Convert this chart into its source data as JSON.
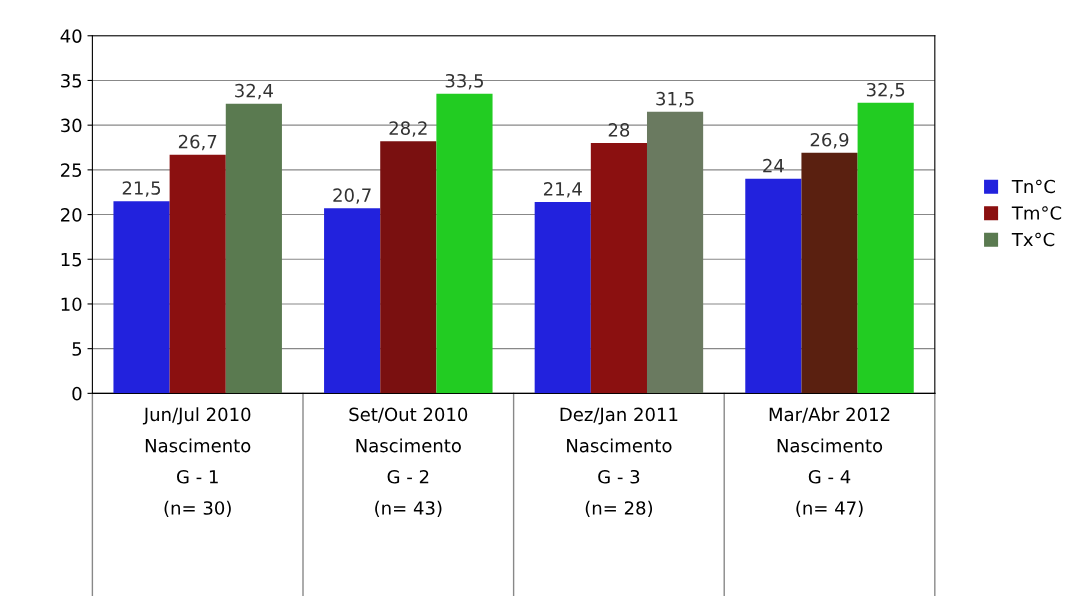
{
  "chart_data": {
    "type": "bar",
    "categories": [
      "Jun/Jul 2010\nNascimento\nG - 1\n(n= 30)",
      "Set/Out 2010\nNascimento\nG - 2\n(n= 43)",
      "Dez/Jan 2011\nNascimento\nG - 3\n(n= 28)",
      "Mar/Abr 2012\nNascimento\nG - 4\n(n= 47)"
    ],
    "series": [
      {
        "name": "Tn°C",
        "color": "#2222dd",
        "values": [
          21.5,
          20.7,
          21.4,
          24
        ],
        "value_labels": [
          "21,5",
          "20,7",
          "21,4",
          "24"
        ]
      },
      {
        "name": "Tm°C",
        "color": "#8b1010",
        "colors": [
          "#8b1010",
          "#7a1010",
          "#8b1010",
          "#5a2010"
        ],
        "values": [
          26.7,
          28.2,
          28,
          26.9
        ],
        "value_labels": [
          "26,7",
          "28,2",
          "28",
          "26,9"
        ]
      },
      {
        "name": "Tx°C",
        "color": "#5a7a50",
        "colors": [
          "#5a7a50",
          "#22cc22",
          "#6a7a60",
          "#22cc22"
        ],
        "values": [
          32.4,
          33.5,
          31.5,
          32.5
        ],
        "value_labels": [
          "32,4",
          "33,5",
          "31,5",
          "32,5"
        ]
      }
    ],
    "ylim": [
      0,
      40
    ],
    "yticks": [
      0,
      5,
      10,
      15,
      20,
      25,
      30,
      35,
      40
    ],
    "grid": "y",
    "legend": "right"
  }
}
